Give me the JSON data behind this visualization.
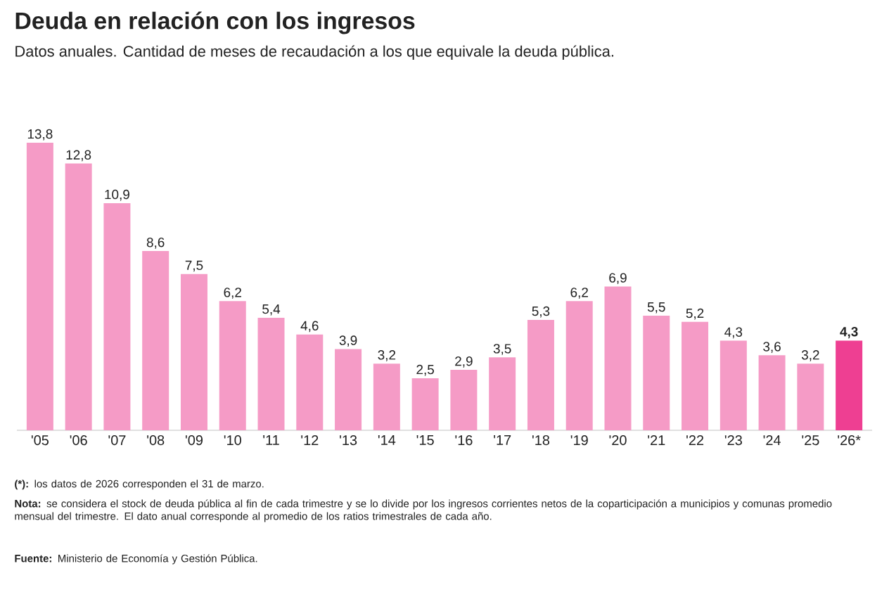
{
  "chart_data": {
    "type": "bar",
    "title": "Deuda en relación con los ingresos",
    "subtitle": "Datos anuales. Cantidad de meses de recaudación a los que equivale la deuda pública.",
    "categories": [
      "'05",
      "'06",
      "'07",
      "'08",
      "'09",
      "'10",
      "'11",
      "'12",
      "'13",
      "'14",
      "'15",
      "'16",
      "'17",
      "'18",
      "'19",
      "'20",
      "'21",
      "'22",
      "'23",
      "'24",
      "'25",
      "'26*"
    ],
    "values": [
      13.8,
      12.8,
      10.9,
      8.6,
      7.5,
      6.2,
      5.4,
      4.6,
      3.9,
      3.2,
      2.5,
      2.9,
      3.5,
      5.3,
      6.2,
      6.9,
      5.5,
      5.2,
      4.3,
      3.6,
      3.2,
      4.3
    ],
    "value_labels": [
      "13,8",
      "12,8",
      "10,9",
      "8,6",
      "7,5",
      "6,2",
      "5,4",
      "4,6",
      "3,9",
      "3,2",
      "2,5",
      "2,9",
      "3,5",
      "5,3",
      "6,2",
      "6,9",
      "5,5",
      "5,2",
      "4,3",
      "3,6",
      "3,2",
      "**4,3**"
    ],
    "colors": [
      "#f59bc6",
      "#f59bc6",
      "#f59bc6",
      "#f59bc6",
      "#f59bc6",
      "#f59bc6",
      "#f59bc6",
      "#f59bc6",
      "#f59bc6",
      "#f59bc6",
      "#f59bc6",
      "#f59bc6",
      "#f59bc6",
      "#f59bc6",
      "#f59bc6",
      "#f59bc6",
      "#f59bc6",
      "#f59bc6",
      "#f59bc6",
      "#f59bc6",
      "#f59bc6",
      "#ee3f92"
    ],
    "annotations": [
      "**(*):** los datos de 2026 corresponden el 31 de marzo.",
      "**Nota:** se considera el stock de deuda pública al fin de cada trimestre y se lo divide por los ingresos corrientes netos de la coparticipación a municipios y comunas promedio mensual del trimestre. El dato anual corresponde al promedio de los ratios trimestrales de cada año.",
      "**Fuente:** Ministerio de Economía y Gestión Pública."
    ]
  }
}
